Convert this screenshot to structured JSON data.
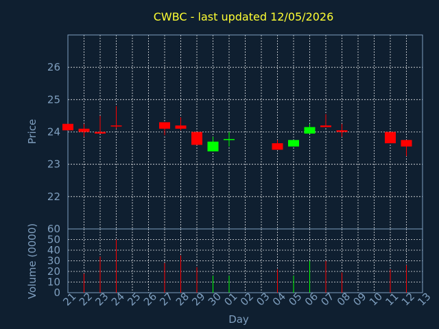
{
  "chart_data": {
    "type": "candlestick",
    "title": "CWBC - last updated 12/05/2026",
    "xlabel": "Day",
    "ylabel_price": "Price",
    "ylabel_volume": "Volume (0000)",
    "x_ticks": [
      "21",
      "22",
      "23",
      "24",
      "25",
      "26",
      "27",
      "28",
      "29",
      "30",
      "01",
      "02",
      "03",
      "04",
      "05",
      "06",
      "07",
      "08",
      "09",
      "10",
      "11",
      "12",
      "13"
    ],
    "price_yticks": [
      "22",
      "23",
      "24",
      "25",
      "26"
    ],
    "volume_yticks": [
      "0",
      "10",
      "20",
      "30",
      "40",
      "50",
      "60"
    ],
    "price_ylim": [
      21,
      27
    ],
    "volume_ylim": [
      0,
      60
    ],
    "grid": true,
    "colors": {
      "up": "#00ff00",
      "down": "#ff0000",
      "grid": "#ffffff",
      "axis": "#7f9fbf",
      "title": "#ffff33",
      "background": "#0f1f30"
    },
    "candles": [
      {
        "day": "21",
        "open": 24.25,
        "high": 24.25,
        "low": 24.05,
        "close": 24.05
      },
      {
        "day": "22",
        "open": 24.1,
        "high": 24.25,
        "low": 23.85,
        "close": 24.0
      },
      {
        "day": "23",
        "open": 24.0,
        "high": 24.5,
        "low": 23.95,
        "close": 23.95
      },
      {
        "day": "24",
        "open": 24.2,
        "high": 24.8,
        "low": 24.1,
        "close": 24.18
      },
      {
        "day": "27",
        "open": 24.3,
        "high": 24.3,
        "low": 23.9,
        "close": 24.1
      },
      {
        "day": "28",
        "open": 24.2,
        "high": 24.45,
        "low": 24.05,
        "close": 24.1
      },
      {
        "day": "29",
        "open": 24.0,
        "high": 24.0,
        "low": 23.6,
        "close": 23.6
      },
      {
        "day": "30",
        "open": 23.4,
        "high": 23.85,
        "low": 23.4,
        "close": 23.7
      },
      {
        "day": "01",
        "open": 23.75,
        "high": 24.0,
        "low": 23.55,
        "close": 23.78
      },
      {
        "day": "04",
        "open": 23.65,
        "high": 23.75,
        "low": 23.45,
        "close": 23.45
      },
      {
        "day": "05",
        "open": 23.55,
        "high": 23.75,
        "low": 23.55,
        "close": 23.75
      },
      {
        "day": "06",
        "open": 23.95,
        "high": 24.25,
        "low": 23.95,
        "close": 24.15
      },
      {
        "day": "07",
        "open": 24.2,
        "high": 24.55,
        "low": 24.15,
        "close": 24.15
      },
      {
        "day": "08",
        "open": 24.05,
        "high": 24.25,
        "low": 23.85,
        "close": 24.0
      },
      {
        "day": "11",
        "open": 24.0,
        "high": 24.0,
        "low": 23.65,
        "close": 23.65
      },
      {
        "day": "12",
        "open": 23.75,
        "high": 23.75,
        "low": 23.25,
        "close": 23.55
      }
    ],
    "volume": [
      {
        "day": "22",
        "value": 18,
        "dir": "down"
      },
      {
        "day": "23",
        "value": 34,
        "dir": "down"
      },
      {
        "day": "24",
        "value": 50,
        "dir": "down"
      },
      {
        "day": "27",
        "value": 28,
        "dir": "down"
      },
      {
        "day": "28",
        "value": 35,
        "dir": "down"
      },
      {
        "day": "29",
        "value": 24,
        "dir": "down"
      },
      {
        "day": "30",
        "value": 16,
        "dir": "up"
      },
      {
        "day": "01",
        "value": 16,
        "dir": "up"
      },
      {
        "day": "04",
        "value": 22,
        "dir": "down"
      },
      {
        "day": "05",
        "value": 16,
        "dir": "up"
      },
      {
        "day": "06",
        "value": 30,
        "dir": "up"
      },
      {
        "day": "07",
        "value": 30,
        "dir": "down"
      },
      {
        "day": "08",
        "value": 19,
        "dir": "down"
      },
      {
        "day": "11",
        "value": 22,
        "dir": "down"
      },
      {
        "day": "12",
        "value": 26,
        "dir": "down"
      }
    ]
  }
}
